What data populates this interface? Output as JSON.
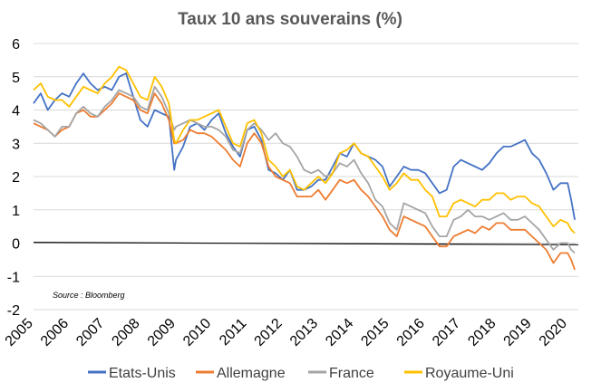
{
  "chart_data": {
    "type": "line",
    "title": "Taux 10 ans souverains (%)",
    "source": "Source : Bloomberg",
    "ylim": [
      -2,
      6
    ],
    "yticks": [
      "-2",
      "-1",
      "0",
      "1",
      "2",
      "3",
      "4",
      "5",
      "6"
    ],
    "xlim": [
      2005,
      2020.3
    ],
    "xticks": [
      "2005",
      "2006",
      "2007",
      "2008",
      "2009",
      "2010",
      "2011",
      "2012",
      "2013",
      "2014",
      "2015",
      "2016",
      "2017",
      "2018",
      "2019",
      "2020"
    ],
    "grid": "horizontal",
    "legend_position": "bottom",
    "colors": {
      "Etats-Unis": "#4472C4",
      "Allemagne": "#ED7D31",
      "France": "#A5A5A5",
      "Royaume-Uni": "#FFC000"
    },
    "series": [
      {
        "name": "Etats-Unis",
        "x": [
          2005.0,
          2005.2,
          2005.4,
          2005.6,
          2005.8,
          2006.0,
          2006.2,
          2006.4,
          2006.6,
          2006.8,
          2007.0,
          2007.2,
          2007.4,
          2007.6,
          2007.8,
          2008.0,
          2008.2,
          2008.4,
          2008.6,
          2008.8,
          2008.95,
          2009.0,
          2009.2,
          2009.4,
          2009.6,
          2009.8,
          2010.0,
          2010.2,
          2010.4,
          2010.6,
          2010.8,
          2011.0,
          2011.2,
          2011.4,
          2011.6,
          2011.8,
          2012.0,
          2012.2,
          2012.4,
          2012.6,
          2012.8,
          2013.0,
          2013.2,
          2013.4,
          2013.6,
          2013.8,
          2014.0,
          2014.2,
          2014.4,
          2014.6,
          2014.8,
          2015.0,
          2015.2,
          2015.4,
          2015.6,
          2015.8,
          2016.0,
          2016.2,
          2016.4,
          2016.6,
          2016.8,
          2017.0,
          2017.2,
          2017.4,
          2017.6,
          2017.8,
          2018.0,
          2018.2,
          2018.4,
          2018.6,
          2018.8,
          2019.0,
          2019.2,
          2019.4,
          2019.6,
          2019.8,
          2020.0,
          2020.1,
          2020.2
        ],
        "values": [
          4.2,
          4.5,
          4.0,
          4.3,
          4.5,
          4.4,
          4.8,
          5.1,
          4.8,
          4.6,
          4.7,
          4.6,
          5.0,
          5.1,
          4.4,
          3.7,
          3.5,
          4.0,
          3.9,
          3.8,
          2.2,
          2.5,
          2.9,
          3.5,
          3.6,
          3.4,
          3.7,
          3.9,
          3.3,
          2.9,
          2.6,
          3.4,
          3.5,
          3.1,
          2.2,
          2.1,
          1.9,
          2.2,
          1.6,
          1.6,
          1.7,
          1.9,
          1.9,
          2.3,
          2.7,
          2.6,
          3.0,
          2.7,
          2.6,
          2.5,
          2.3,
          1.7,
          2.0,
          2.3,
          2.2,
          2.2,
          2.1,
          1.8,
          1.5,
          1.6,
          2.3,
          2.5,
          2.4,
          2.3,
          2.2,
          2.4,
          2.7,
          2.9,
          2.9,
          3.0,
          3.1,
          2.7,
          2.5,
          2.1,
          1.6,
          1.8,
          1.8,
          1.3,
          0.7
        ]
      },
      {
        "name": "Allemagne",
        "x": [
          2005.0,
          2005.2,
          2005.4,
          2005.6,
          2005.8,
          2006.0,
          2006.2,
          2006.4,
          2006.6,
          2006.8,
          2007.0,
          2007.2,
          2007.4,
          2007.6,
          2007.8,
          2008.0,
          2008.2,
          2008.4,
          2008.6,
          2008.8,
          2008.95,
          2009.0,
          2009.2,
          2009.4,
          2009.6,
          2009.8,
          2010.0,
          2010.2,
          2010.4,
          2010.6,
          2010.8,
          2011.0,
          2011.2,
          2011.4,
          2011.6,
          2011.8,
          2012.0,
          2012.2,
          2012.4,
          2012.6,
          2012.8,
          2013.0,
          2013.2,
          2013.4,
          2013.6,
          2013.8,
          2014.0,
          2014.2,
          2014.4,
          2014.6,
          2014.8,
          2015.0,
          2015.2,
          2015.4,
          2015.6,
          2015.8,
          2016.0,
          2016.2,
          2016.4,
          2016.6,
          2016.8,
          2017.0,
          2017.2,
          2017.4,
          2017.6,
          2017.8,
          2018.0,
          2018.2,
          2018.4,
          2018.6,
          2018.8,
          2019.0,
          2019.2,
          2019.4,
          2019.6,
          2019.8,
          2020.0,
          2020.1,
          2020.2
        ],
        "values": [
          3.6,
          3.5,
          3.4,
          3.2,
          3.4,
          3.5,
          3.9,
          4.0,
          3.8,
          3.8,
          4.0,
          4.2,
          4.5,
          4.4,
          4.3,
          4.0,
          3.9,
          4.5,
          4.2,
          3.7,
          3.0,
          3.0,
          3.1,
          3.4,
          3.3,
          3.3,
          3.2,
          3.0,
          2.8,
          2.5,
          2.3,
          3.0,
          3.3,
          3.0,
          2.3,
          2.0,
          1.9,
          1.8,
          1.4,
          1.4,
          1.4,
          1.6,
          1.3,
          1.6,
          1.9,
          1.8,
          1.9,
          1.6,
          1.4,
          1.1,
          0.8,
          0.4,
          0.2,
          0.8,
          0.7,
          0.6,
          0.5,
          0.2,
          -0.1,
          -0.1,
          0.2,
          0.3,
          0.4,
          0.3,
          0.5,
          0.4,
          0.6,
          0.6,
          0.4,
          0.4,
          0.4,
          0.2,
          0.0,
          -0.2,
          -0.6,
          -0.3,
          -0.3,
          -0.5,
          -0.8
        ]
      },
      {
        "name": "France",
        "x": [
          2005.0,
          2005.2,
          2005.4,
          2005.6,
          2005.8,
          2006.0,
          2006.2,
          2006.4,
          2006.6,
          2006.8,
          2007.0,
          2007.2,
          2007.4,
          2007.6,
          2007.8,
          2008.0,
          2008.2,
          2008.4,
          2008.6,
          2008.8,
          2008.95,
          2009.0,
          2009.2,
          2009.4,
          2009.6,
          2009.8,
          2010.0,
          2010.2,
          2010.4,
          2010.6,
          2010.8,
          2011.0,
          2011.2,
          2011.4,
          2011.6,
          2011.8,
          2012.0,
          2012.2,
          2012.4,
          2012.6,
          2012.8,
          2013.0,
          2013.2,
          2013.4,
          2013.6,
          2013.8,
          2014.0,
          2014.2,
          2014.4,
          2014.6,
          2014.8,
          2015.0,
          2015.2,
          2015.4,
          2015.6,
          2015.8,
          2016.0,
          2016.2,
          2016.4,
          2016.6,
          2016.8,
          2017.0,
          2017.2,
          2017.4,
          2017.6,
          2017.8,
          2018.0,
          2018.2,
          2018.4,
          2018.6,
          2018.8,
          2019.0,
          2019.2,
          2019.4,
          2019.6,
          2019.8,
          2020.0,
          2020.1,
          2020.2
        ],
        "values": [
          3.7,
          3.6,
          3.4,
          3.2,
          3.5,
          3.5,
          3.9,
          4.1,
          3.9,
          3.8,
          4.1,
          4.3,
          4.6,
          4.5,
          4.4,
          4.1,
          4.0,
          4.7,
          4.4,
          3.9,
          3.4,
          3.5,
          3.6,
          3.7,
          3.6,
          3.5,
          3.5,
          3.4,
          3.2,
          2.8,
          2.7,
          3.4,
          3.6,
          3.4,
          3.1,
          3.3,
          3.0,
          2.9,
          2.6,
          2.2,
          2.1,
          2.2,
          2.0,
          2.1,
          2.4,
          2.3,
          2.5,
          2.1,
          1.8,
          1.3,
          1.1,
          0.6,
          0.4,
          1.2,
          1.1,
          1.0,
          0.9,
          0.5,
          0.2,
          0.2,
          0.7,
          0.8,
          1.0,
          0.8,
          0.8,
          0.7,
          0.8,
          0.9,
          0.7,
          0.7,
          0.8,
          0.6,
          0.4,
          0.1,
          -0.2,
          -0.0,
          0.0,
          -0.2,
          -0.3
        ]
      },
      {
        "name": "Royaume-Uni",
        "x": [
          2005.0,
          2005.2,
          2005.4,
          2005.6,
          2005.8,
          2006.0,
          2006.2,
          2006.4,
          2006.6,
          2006.8,
          2007.0,
          2007.2,
          2007.4,
          2007.6,
          2007.8,
          2008.0,
          2008.2,
          2008.4,
          2008.6,
          2008.8,
          2008.95,
          2009.0,
          2009.2,
          2009.4,
          2009.6,
          2009.8,
          2010.0,
          2010.2,
          2010.4,
          2010.6,
          2010.8,
          2011.0,
          2011.2,
          2011.4,
          2011.6,
          2011.8,
          2012.0,
          2012.2,
          2012.4,
          2012.6,
          2012.8,
          2013.0,
          2013.2,
          2013.4,
          2013.6,
          2013.8,
          2014.0,
          2014.2,
          2014.4,
          2014.6,
          2014.8,
          2015.0,
          2015.2,
          2015.4,
          2015.6,
          2015.8,
          2016.0,
          2016.2,
          2016.4,
          2016.6,
          2016.8,
          2017.0,
          2017.2,
          2017.4,
          2017.6,
          2017.8,
          2018.0,
          2018.2,
          2018.4,
          2018.6,
          2018.8,
          2019.0,
          2019.2,
          2019.4,
          2019.6,
          2019.8,
          2020.0,
          2020.1,
          2020.2
        ],
        "values": [
          4.6,
          4.8,
          4.4,
          4.3,
          4.3,
          4.1,
          4.4,
          4.7,
          4.6,
          4.5,
          4.8,
          5.0,
          5.3,
          5.2,
          4.8,
          4.4,
          4.3,
          5.0,
          4.7,
          4.2,
          3.1,
          3.0,
          3.4,
          3.7,
          3.7,
          3.8,
          3.9,
          4.0,
          3.5,
          3.0,
          2.9,
          3.6,
          3.7,
          3.3,
          2.5,
          2.3,
          2.0,
          2.2,
          1.7,
          1.6,
          1.8,
          2.0,
          1.8,
          2.1,
          2.7,
          2.8,
          3.0,
          2.7,
          2.6,
          2.3,
          2.0,
          1.6,
          1.8,
          2.1,
          1.9,
          1.9,
          1.6,
          1.4,
          0.8,
          0.8,
          1.2,
          1.3,
          1.2,
          1.1,
          1.3,
          1.3,
          1.5,
          1.5,
          1.3,
          1.4,
          1.4,
          1.2,
          1.1,
          0.8,
          0.5,
          0.7,
          0.6,
          0.4,
          0.3
        ]
      }
    ]
  }
}
